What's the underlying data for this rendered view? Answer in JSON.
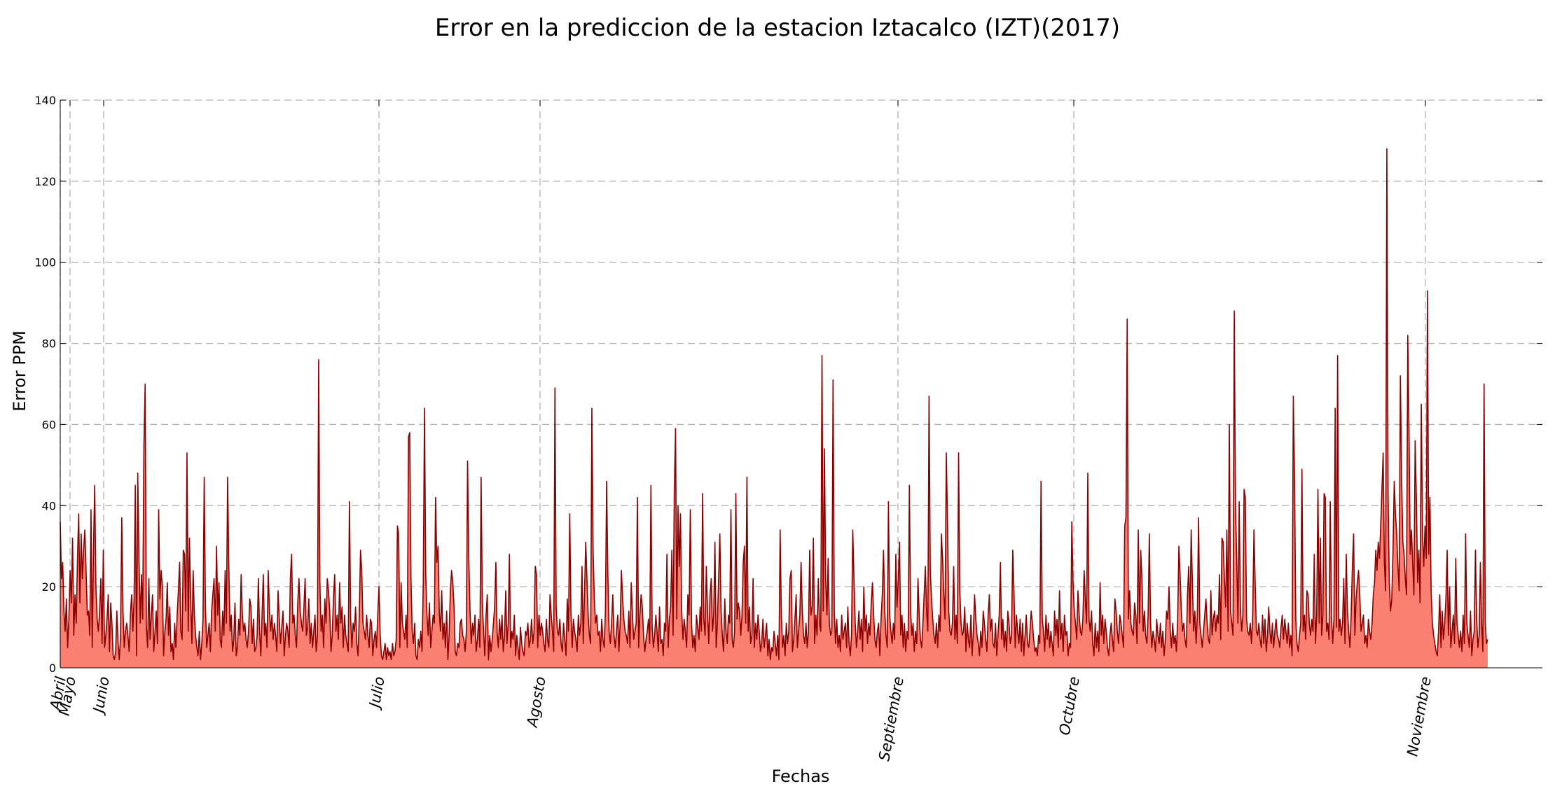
{
  "chart_data": {
    "type": "area",
    "title": "Error en la prediccion de la estacion Iztacalco (IZT)(2017)",
    "xlabel": "Fechas",
    "ylabel": "Error PPM",
    "ylim": [
      0,
      140
    ],
    "yticks": [
      0,
      20,
      40,
      60,
      80,
      100,
      120,
      140
    ],
    "grid": true,
    "colors": {
      "line": "#8b0000",
      "fill": "#fa8072"
    },
    "month_ticks": [
      "Abril",
      "Mayo",
      "Junio",
      "Julio",
      "Agosto",
      "Septiembre",
      "Octubre",
      "Noviembre"
    ],
    "series": [
      {
        "values": [
          36,
          22,
          26,
          14,
          9,
          17,
          5,
          12,
          24,
          16,
          32,
          8,
          18,
          11,
          27,
          38,
          16,
          33,
          22,
          29,
          34,
          24,
          13,
          14,
          8,
          39,
          5,
          29,
          45,
          20,
          12,
          9,
          14,
          22,
          6,
          29,
          5,
          8,
          12,
          18,
          4,
          16,
          11,
          3,
          2,
          4,
          14,
          6,
          2,
          8,
          37,
          14,
          5,
          9,
          11,
          8,
          4,
          13,
          18,
          9,
          17,
          45,
          3,
          48,
          27,
          11,
          23,
          12,
          55,
          70,
          10,
          5,
          22,
          7,
          13,
          18,
          4,
          9,
          14,
          6,
          39,
          17,
          24,
          20,
          3,
          9,
          12,
          21,
          8,
          15,
          4,
          6,
          2,
          11,
          5,
          13,
          19,
          26,
          9,
          7,
          29,
          28,
          14,
          53,
          9,
          32,
          17,
          6,
          24,
          13,
          8,
          5,
          3,
          9,
          2,
          6,
          12,
          47,
          15,
          5,
          8,
          11,
          4,
          14,
          18,
          22,
          9,
          30,
          13,
          21,
          7,
          5,
          14,
          8,
          24,
          11,
          47,
          25,
          9,
          13,
          4,
          7,
          16,
          3,
          5,
          12,
          8,
          23,
          13,
          9,
          11,
          7,
          5,
          9,
          17,
          15,
          6,
          12,
          4,
          5,
          8,
          22,
          9,
          3,
          13,
          23,
          8,
          11,
          5,
          24,
          14,
          9,
          13,
          7,
          11,
          8,
          4,
          19,
          12,
          6,
          10,
          14,
          3,
          8,
          11,
          9,
          5,
          22,
          28,
          11,
          13,
          8,
          5,
          16,
          22,
          14,
          11,
          9,
          15,
          22,
          8,
          10,
          17,
          6,
          11,
          5,
          9,
          13,
          4,
          8,
          76,
          21,
          9,
          13,
          5,
          17,
          11,
          22,
          19,
          14,
          4,
          8,
          17,
          23,
          9,
          13,
          7,
          21,
          11,
          15,
          5,
          13,
          8,
          6,
          4,
          41,
          12,
          5,
          11,
          9,
          15,
          6,
          3,
          13,
          29,
          24,
          11,
          9,
          7,
          13,
          8,
          5,
          12,
          11,
          3,
          7,
          9,
          5,
          13,
          20,
          8,
          3,
          2,
          4,
          6,
          2,
          5,
          3,
          4,
          2,
          6,
          3,
          4,
          7,
          35,
          33,
          5,
          21,
          11,
          9,
          7,
          13,
          5,
          57,
          58,
          22,
          9,
          6,
          11,
          3,
          2,
          7,
          5,
          9,
          4,
          21,
          64,
          23,
          13,
          8,
          16,
          5,
          9,
          13,
          11,
          42,
          26,
          30,
          14,
          9,
          19,
          7,
          11,
          5,
          14,
          2,
          8,
          19,
          24,
          21,
          15,
          4,
          3,
          6,
          5,
          11,
          12,
          8,
          7,
          4,
          9,
          51,
          27,
          14,
          6,
          11,
          8,
          13,
          4,
          7,
          12,
          5,
          47,
          16,
          9,
          3,
          13,
          18,
          2,
          8,
          4,
          7,
          11,
          15,
          26,
          9,
          5,
          12,
          7,
          13,
          4,
          8,
          19,
          6,
          11,
          28,
          5,
          9,
          7,
          13,
          3,
          8,
          5,
          2,
          10,
          6,
          4,
          3,
          9,
          8,
          11,
          5,
          7,
          12,
          6,
          9,
          25,
          23,
          5,
          13,
          8,
          11,
          9,
          6,
          4,
          12,
          7,
          5,
          18,
          13,
          9,
          4,
          69,
          15,
          9,
          8,
          12,
          6,
          4,
          11,
          7,
          3,
          17,
          9,
          38,
          14,
          5,
          12,
          9,
          7,
          4,
          13,
          8,
          11,
          25,
          6,
          18,
          31,
          22,
          13,
          8,
          6,
          64,
          29,
          17,
          11,
          13,
          8,
          9,
          4,
          12,
          7,
          5,
          14,
          46,
          23,
          9,
          6,
          11,
          18,
          8,
          5,
          9,
          13,
          4,
          11,
          24,
          17,
          12,
          9,
          8,
          6,
          14,
          5,
          21,
          13,
          7,
          9,
          11,
          42,
          5,
          13,
          18,
          15,
          8,
          4,
          7,
          9,
          12,
          6,
          45,
          10,
          5,
          8,
          13,
          9,
          4,
          15,
          6,
          7,
          3,
          11,
          9,
          28,
          5,
          12,
          15,
          29,
          8,
          44,
          59,
          12,
          40,
          25,
          38,
          14,
          7,
          12,
          9,
          5,
          18,
          13,
          39,
          11,
          5,
          8,
          4,
          13,
          10,
          7,
          15,
          9,
          43,
          12,
          8,
          25,
          14,
          6,
          18,
          22,
          9,
          13,
          31,
          5,
          11,
          22,
          33,
          14,
          8,
          4,
          17,
          9,
          6,
          13,
          11,
          39,
          7,
          5,
          9,
          43,
          12,
          16,
          14,
          8,
          13,
          26,
          30,
          11,
          47,
          9,
          15,
          6,
          8,
          22,
          5,
          11,
          7,
          13,
          9,
          4,
          6,
          12,
          5,
          8,
          11,
          3,
          7,
          2,
          5,
          4,
          9,
          6,
          3,
          8,
          2,
          34,
          13,
          5,
          8,
          3,
          11,
          6,
          9,
          22,
          24,
          4,
          7,
          12,
          18,
          5,
          9,
          13,
          26,
          14,
          8,
          6,
          11,
          5,
          9,
          29,
          13,
          15,
          32,
          6,
          13,
          8,
          22,
          11,
          9,
          77,
          14,
          54,
          22,
          13,
          27,
          11,
          8,
          9,
          71,
          14,
          6,
          12,
          5,
          8,
          4,
          13,
          7,
          9,
          11,
          5,
          15,
          6,
          3,
          8,
          34,
          22,
          11,
          5,
          9,
          14,
          7,
          12,
          4,
          20,
          9,
          13,
          6,
          11,
          8,
          16,
          21,
          13,
          7,
          5,
          9,
          11,
          3,
          12,
          18,
          29,
          14,
          8,
          5,
          41,
          13,
          9,
          6,
          11,
          7,
          28,
          15,
          22,
          31,
          8,
          13,
          5,
          11,
          4,
          9,
          7,
          45,
          14,
          8,
          11,
          4,
          9,
          6,
          22,
          13,
          7,
          5,
          11,
          18,
          25,
          14,
          9,
          67,
          24,
          17,
          12,
          8,
          6,
          11,
          5,
          13,
          9,
          33,
          27,
          18,
          12,
          53,
          36,
          14,
          9,
          8,
          11,
          25,
          7,
          13,
          6,
          53,
          19,
          11,
          8,
          9,
          15,
          4,
          11,
          7,
          5,
          13,
          3,
          9,
          18,
          12,
          8,
          6,
          3,
          9,
          5,
          14,
          11,
          7,
          4,
          13,
          18,
          9,
          12,
          6,
          5,
          11,
          3,
          8,
          13,
          26,
          7,
          12,
          5,
          9,
          4,
          14,
          11,
          6,
          8,
          29,
          19,
          5,
          13,
          9,
          6,
          12,
          4,
          11,
          3,
          8,
          13,
          6,
          5,
          9,
          14,
          11,
          7,
          4,
          5,
          3,
          8,
          6,
          46,
          12,
          9,
          4,
          13,
          7,
          11,
          5,
          9,
          6,
          3,
          14,
          8,
          12,
          5,
          19,
          7,
          11,
          4,
          13,
          8,
          9,
          3,
          6,
          5,
          36,
          21,
          14,
          11,
          7,
          19,
          13,
          9,
          8,
          12,
          24,
          17,
          11,
          48,
          12,
          9,
          14,
          6,
          3,
          11,
          5,
          9,
          4,
          21,
          8,
          13,
          6,
          12,
          9,
          5,
          3,
          8,
          11,
          7,
          4,
          17,
          14,
          9,
          6,
          13,
          11,
          8,
          5,
          35,
          37,
          86,
          12,
          19,
          11,
          9,
          8,
          16,
          13,
          6,
          34,
          11,
          29,
          22,
          9,
          14,
          8,
          6,
          13,
          33,
          11,
          5,
          9,
          7,
          4,
          12,
          8,
          6,
          11,
          5,
          9,
          3,
          7,
          14,
          12,
          20,
          9,
          5,
          11,
          6,
          8,
          4,
          12,
          30,
          23,
          14,
          9,
          11,
          7,
          5,
          18,
          25,
          11,
          34,
          21,
          9,
          14,
          6,
          13,
          37,
          11,
          8,
          5,
          9,
          13,
          17,
          11,
          7,
          6,
          19,
          8,
          12,
          14,
          9,
          13,
          11,
          23,
          7,
          32,
          31,
          22,
          15,
          34,
          9,
          60,
          14,
          11,
          8,
          88,
          40,
          27,
          11,
          41,
          15,
          9,
          13,
          44,
          42,
          12,
          9,
          8,
          11,
          6,
          13,
          34,
          21,
          9,
          8,
          11,
          7,
          5,
          13,
          6,
          12,
          4,
          8,
          15,
          9,
          6,
          11,
          5,
          9,
          12,
          8,
          7,
          5,
          10,
          13,
          7,
          12,
          9,
          6,
          11,
          5,
          8,
          3,
          67,
          47,
          12,
          6,
          4,
          8,
          11,
          49,
          9,
          13,
          7,
          19,
          18,
          11,
          8,
          12,
          9,
          28,
          6,
          13,
          44,
          11,
          32,
          8,
          13,
          43,
          42,
          9,
          11,
          7,
          41,
          13,
          6,
          12,
          64,
          10,
          77,
          9,
          12,
          8,
          11,
          22,
          6,
          28,
          14,
          9,
          5,
          13,
          25,
          33,
          8,
          17,
          21,
          24,
          18,
          9,
          11,
          13,
          6,
          8,
          5,
          12,
          9,
          7,
          11,
          18,
          21,
          29,
          24,
          31,
          27,
          35,
          44,
          53,
          26,
          19,
          128,
          43,
          21,
          14,
          17,
          29,
          46,
          38,
          33,
          25,
          19,
          72,
          47,
          31,
          28,
          22,
          18,
          82,
          59,
          28,
          34,
          26,
          18,
          56,
          42,
          21,
          29,
          16,
          65,
          33,
          25,
          35,
          27,
          93,
          28,
          42,
          19,
          11,
          8,
          6,
          4,
          3,
          9,
          18,
          5,
          14,
          7,
          11,
          17,
          29,
          8,
          20,
          5,
          9,
          13,
          6,
          27,
          11,
          8,
          5,
          9,
          4,
          13,
          6,
          33,
          11,
          8,
          5,
          14,
          3,
          7,
          9,
          29,
          12,
          5,
          8,
          26,
          11,
          4,
          70,
          11,
          6,
          7
        ]
      }
    ]
  }
}
